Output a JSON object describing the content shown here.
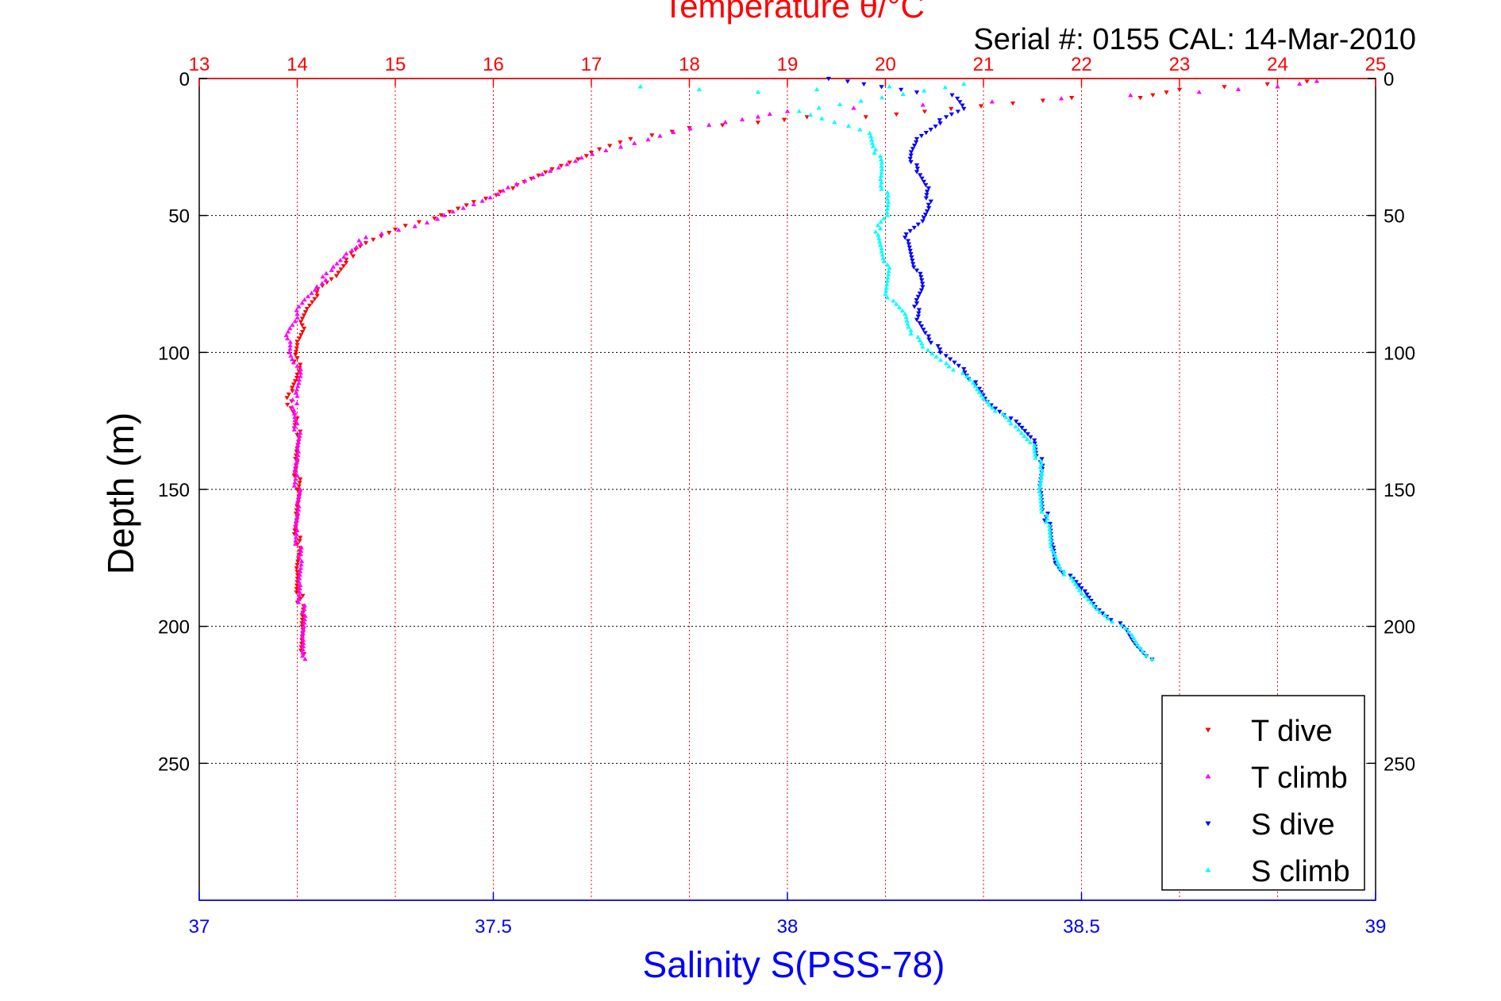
{
  "chart_data": {
    "type": "scatter",
    "title": "Temperature θ/°C",
    "subtitle": "Serial #: 0155  CAL: 14-Mar-2010",
    "ylabel": "Depth (m)",
    "xlabel": "Salinity S(PSS-78)",
    "top_axis": {
      "label": "Temperature θ/°C",
      "range": [
        13,
        25
      ],
      "ticks": [
        "13",
        "14",
        "15",
        "16",
        "17",
        "18",
        "19",
        "20",
        "21",
        "22",
        "23",
        "24",
        "25"
      ]
    },
    "bottom_axis": {
      "label": "Salinity S(PSS-78)",
      "range": [
        37,
        39
      ],
      "ticks": [
        "37",
        "37.5",
        "38",
        "38.5",
        "39"
      ]
    },
    "y_axis": {
      "range": [
        0,
        300
      ],
      "reversed": true,
      "ticks": [
        "0",
        "50",
        "100",
        "150",
        "200",
        "250"
      ]
    },
    "grid": true,
    "legend_position": "bottom-right",
    "colors": {
      "temperature_axis": "#ff0000",
      "salinity_axis": "#0000ff",
      "t_dive": "#ff0000",
      "t_climb": "#ff00ff",
      "s_dive": "#0000ff",
      "s_climb": "#00ffff"
    },
    "series": [
      {
        "name": "T dive",
        "axis": "temperature",
        "marker": "triangle-down",
        "color": "#ff0000",
        "points": [
          [
            24.3,
            1
          ],
          [
            23.0,
            4
          ],
          [
            22.6,
            7
          ],
          [
            21.9,
            7
          ],
          [
            21.3,
            9
          ],
          [
            20.4,
            12
          ],
          [
            19.8,
            14
          ],
          [
            19.2,
            14
          ],
          [
            18.7,
            16
          ],
          [
            18.0,
            18
          ],
          [
            17.4,
            22
          ],
          [
            17.0,
            27
          ],
          [
            16.6,
            33
          ],
          [
            16.2,
            40
          ],
          [
            15.8,
            45
          ],
          [
            15.4,
            51
          ],
          [
            15.0,
            55
          ],
          [
            14.7,
            60
          ],
          [
            14.5,
            66
          ],
          [
            14.4,
            72
          ],
          [
            14.2,
            78
          ],
          [
            14.1,
            84
          ],
          [
            14.05,
            90
          ],
          [
            14.0,
            96
          ],
          [
            14.0,
            102
          ],
          [
            14.0,
            108
          ],
          [
            13.95,
            114
          ],
          [
            13.9,
            119
          ],
          [
            14.0,
            124
          ],
          [
            14.0,
            130
          ],
          [
            14.0,
            140
          ],
          [
            14.0,
            150
          ],
          [
            14.0,
            160
          ],
          [
            14.0,
            170
          ],
          [
            14.0,
            180
          ],
          [
            14.03,
            190
          ],
          [
            14.05,
            200
          ],
          [
            14.07,
            210
          ]
        ]
      },
      {
        "name": "T climb",
        "axis": "temperature",
        "marker": "triangle-up",
        "color": "#ff00ff",
        "points": [
          [
            24.4,
            1
          ],
          [
            24.0,
            3
          ],
          [
            23.6,
            4
          ],
          [
            23.2,
            5
          ],
          [
            19.0,
            12
          ],
          [
            18.7,
            14
          ],
          [
            18.2,
            17
          ],
          [
            17.7,
            21
          ],
          [
            17.3,
            25
          ],
          [
            16.9,
            29
          ],
          [
            16.5,
            35
          ],
          [
            16.1,
            41
          ],
          [
            15.8,
            46
          ],
          [
            15.5,
            50
          ],
          [
            15.2,
            54
          ],
          [
            14.7,
            58
          ],
          [
            14.5,
            64
          ],
          [
            14.35,
            70
          ],
          [
            14.2,
            76
          ],
          [
            14.05,
            82
          ],
          [
            14.0,
            86
          ],
          [
            13.95,
            90
          ],
          [
            13.9,
            95
          ],
          [
            13.92,
            100
          ],
          [
            14.0,
            105
          ],
          [
            14.02,
            110
          ],
          [
            14.0,
            116
          ],
          [
            13.95,
            120
          ],
          [
            14.0,
            126
          ],
          [
            14.0,
            135
          ],
          [
            14.0,
            145
          ],
          [
            14.0,
            155
          ],
          [
            14.0,
            165
          ],
          [
            14.02,
            175
          ],
          [
            14.03,
            185
          ],
          [
            14.05,
            195
          ],
          [
            14.06,
            205
          ],
          [
            14.08,
            212
          ]
        ]
      },
      {
        "name": "S dive",
        "axis": "salinity",
        "marker": "triangle-down",
        "color": "#0000ff",
        "points": [
          [
            38.07,
            0
          ],
          [
            38.13,
            2
          ],
          [
            38.16,
            3
          ],
          [
            38.22,
            5
          ],
          [
            38.28,
            6
          ],
          [
            38.3,
            11
          ],
          [
            38.27,
            14
          ],
          [
            38.22,
            22
          ],
          [
            38.21,
            28
          ],
          [
            38.22,
            34
          ],
          [
            38.24,
            40
          ],
          [
            38.24,
            46
          ],
          [
            38.23,
            52
          ],
          [
            38.2,
            58
          ],
          [
            38.21,
            64
          ],
          [
            38.22,
            70
          ],
          [
            38.23,
            76
          ],
          [
            38.22,
            82
          ],
          [
            38.22,
            88
          ],
          [
            38.24,
            94
          ],
          [
            38.26,
            100
          ],
          [
            38.3,
            106
          ],
          [
            38.32,
            112
          ],
          [
            38.34,
            118
          ],
          [
            38.38,
            124
          ],
          [
            38.42,
            132
          ],
          [
            38.43,
            140
          ],
          [
            38.43,
            150
          ],
          [
            38.44,
            160
          ],
          [
            38.45,
            170
          ],
          [
            38.46,
            178
          ],
          [
            38.5,
            186
          ],
          [
            38.53,
            194
          ],
          [
            38.57,
            200
          ],
          [
            38.59,
            206
          ],
          [
            38.62,
            212
          ]
        ]
      },
      {
        "name": "S climb",
        "axis": "salinity",
        "marker": "triangle-up",
        "color": "#00ffff",
        "points": [
          [
            37.75,
            3
          ],
          [
            37.85,
            4
          ],
          [
            37.95,
            5
          ],
          [
            38.05,
            4
          ],
          [
            38.3,
            2
          ],
          [
            38.02,
            12
          ],
          [
            38.08,
            16
          ],
          [
            38.14,
            20
          ],
          [
            38.15,
            26
          ],
          [
            38.16,
            32
          ],
          [
            38.16,
            38
          ],
          [
            38.17,
            44
          ],
          [
            38.17,
            50
          ],
          [
            38.15,
            56
          ],
          [
            38.16,
            62
          ],
          [
            38.17,
            68
          ],
          [
            38.17,
            74
          ],
          [
            38.17,
            80
          ],
          [
            38.2,
            86
          ],
          [
            38.21,
            92
          ],
          [
            38.23,
            98
          ],
          [
            38.27,
            104
          ],
          [
            38.31,
            110
          ],
          [
            38.34,
            118
          ],
          [
            38.38,
            126
          ],
          [
            38.42,
            134
          ],
          [
            38.43,
            142
          ],
          [
            38.43,
            152
          ],
          [
            38.44,
            162
          ],
          [
            38.45,
            172
          ],
          [
            38.47,
            180
          ],
          [
            38.5,
            188
          ],
          [
            38.54,
            196
          ],
          [
            38.58,
            202
          ],
          [
            38.6,
            208
          ],
          [
            38.62,
            212
          ]
        ]
      }
    ]
  }
}
